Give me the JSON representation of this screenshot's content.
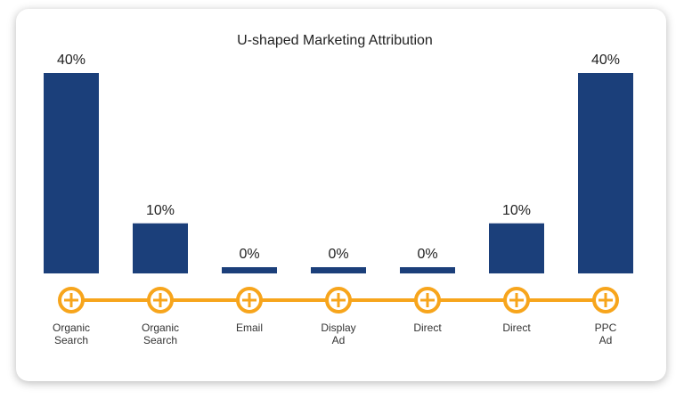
{
  "chart_data": {
    "type": "bar",
    "title": "U-shaped Marketing Attribution",
    "categories": [
      [
        "Organic",
        "Search"
      ],
      [
        "Organic",
        "Search"
      ],
      [
        "Email"
      ],
      [
        "Display",
        "Ad"
      ],
      [
        "Direct"
      ],
      [
        "Direct"
      ],
      [
        "PPC",
        "Ad"
      ]
    ],
    "values": [
      40,
      10,
      0,
      0,
      0,
      10,
      40
    ],
    "data_labels": [
      "40%",
      "10%",
      "0%",
      "0%",
      "0%",
      "10%",
      "40%"
    ],
    "ylim": [
      0,
      40
    ],
    "grid": false,
    "colors": {
      "bar": "#1b3f7a",
      "timeline": "#f7a51c"
    },
    "icons": "plus-circle-icon"
  }
}
